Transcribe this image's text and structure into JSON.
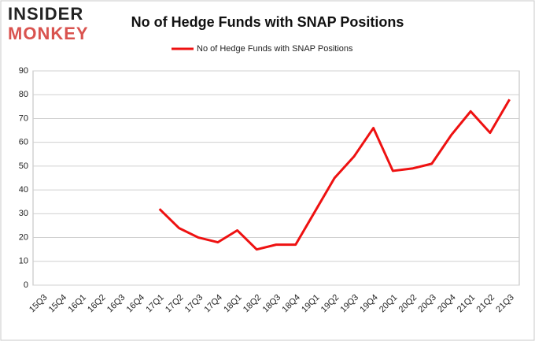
{
  "logo": {
    "line1": "INSIDER",
    "line2": "MONKEY"
  },
  "chart_data": {
    "type": "line",
    "title": "No of Hedge Funds with SNAP Positions",
    "categories": [
      "15Q3",
      "15Q4",
      "16Q1",
      "16Q2",
      "16Q3",
      "16Q4",
      "17Q1",
      "17Q2",
      "17Q3",
      "17Q4",
      "18Q1",
      "18Q2",
      "18Q3",
      "18Q4",
      "19Q1",
      "19Q2",
      "19Q3",
      "19Q4",
      "20Q1",
      "20Q2",
      "20Q3",
      "20Q4",
      "21Q1",
      "21Q2",
      "21Q3"
    ],
    "series": [
      {
        "name": "No of Hedge Funds with SNAP Positions",
        "color": "#ee1111",
        "values": [
          null,
          null,
          null,
          null,
          null,
          null,
          32,
          24,
          20,
          18,
          23,
          15,
          17,
          17,
          31,
          45,
          54,
          66,
          48,
          49,
          51,
          63,
          73,
          64,
          78
        ]
      }
    ],
    "ylim": [
      0,
      90
    ],
    "yticks": [
      0,
      10,
      20,
      30,
      40,
      50,
      60,
      70,
      80,
      90
    ],
    "grid": true,
    "legend": "top"
  }
}
